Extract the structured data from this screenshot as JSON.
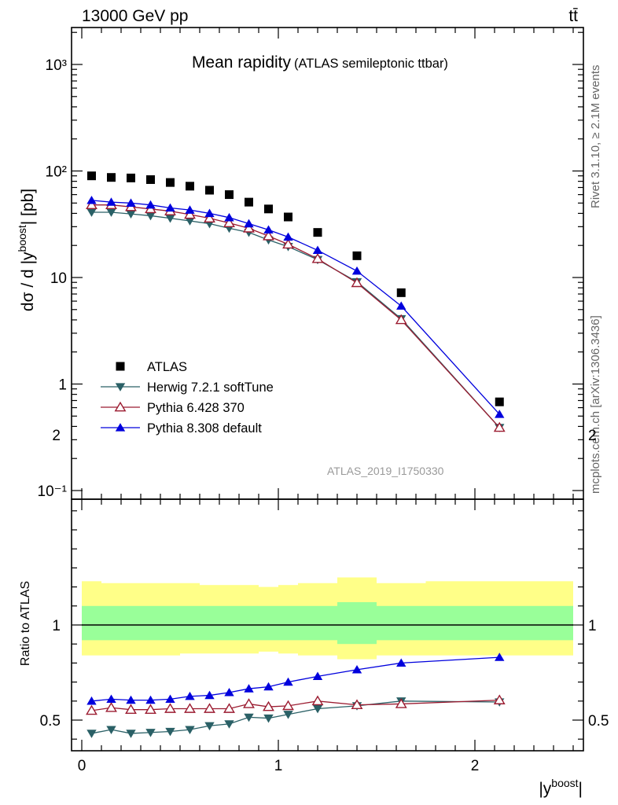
{
  "header": {
    "energy_label": "13000 GeV pp",
    "process_label": "tt̄"
  },
  "side_text": {
    "rivet": "Rivet 3.1.10, ≥ 2.1M events",
    "mcplots": "mcplots.cern.ch [arXiv:1306.3436]"
  },
  "chart_data": [
    {
      "type": "line",
      "title": "Mean rapidity",
      "subtitle": "(ATLAS semileptonic ttbar)",
      "ylabel": "dσ / d |y^boost| [pb]",
      "xlabel": "|y^boost|",
      "yscale": "log",
      "ylim": [
        0.08,
        2000
      ],
      "xlim": [
        -0.1,
        2.55
      ],
      "ytick_labels": [
        "10⁻¹",
        "1",
        "10",
        "10²",
        "10³"
      ],
      "watermark": "ATLAS_2019_I1750330",
      "legend_placement": "lower-left",
      "x": [
        0.05,
        0.15,
        0.25,
        0.35,
        0.45,
        0.55,
        0.65,
        0.75,
        0.85,
        0.95,
        1.05,
        1.2,
        1.4,
        1.625,
        2.125
      ],
      "series": [
        {
          "name": "ATLAS",
          "color": "#000000",
          "marker": "filled-square",
          "values": [
            90,
            87,
            86,
            83,
            78,
            72,
            66,
            60,
            51,
            44,
            37,
            26.5,
            16,
            7.2,
            0.68
          ]
        },
        {
          "name": "Herwig 7.2.1 softTune",
          "color": "#2a6066",
          "marker": "filled-triangle-down",
          "values": [
            41,
            41,
            39.5,
            38,
            36,
            34,
            32,
            29,
            26.5,
            22.5,
            19.5,
            14.7,
            9.1,
            4.1,
            0.39
          ]
        },
        {
          "name": "Pythia 6.428 370",
          "color": "#9b1b30",
          "marker": "open-triangle-up",
          "values": [
            48,
            48,
            46,
            44,
            42,
            39,
            36,
            32.5,
            29,
            24.5,
            20.5,
            15,
            8.9,
            4.0,
            0.39
          ]
        },
        {
          "name": "Pythia 8.308 default",
          "color": "#0000dd",
          "marker": "filled-triangle-up",
          "values": [
            53,
            51,
            50,
            48,
            45,
            43,
            40,
            36.5,
            32,
            28,
            24,
            18,
            11.5,
            5.4,
            0.52
          ]
        }
      ]
    },
    {
      "type": "line",
      "ylabel": "Ratio to ATLAS",
      "ylim": [
        0.38,
        2.3
      ],
      "x": [
        0.05,
        0.15,
        0.25,
        0.35,
        0.45,
        0.55,
        0.65,
        0.75,
        0.85,
        0.95,
        1.05,
        1.2,
        1.4,
        1.625,
        2.125
      ],
      "x_edges": [
        0,
        0.1,
        0.2,
        0.3,
        0.4,
        0.5,
        0.6,
        0.7,
        0.8,
        0.9,
        1.0,
        1.1,
        1.3,
        1.5,
        1.75,
        2.5
      ],
      "xtick_labels": [
        "0",
        "1",
        "2"
      ],
      "ytick_labels": [
        "0.5",
        "1",
        "2"
      ],
      "bands": {
        "inner_color": "#99ff99",
        "outer_color": "#ffff88",
        "inner_up": [
          1.1,
          1.1,
          1.1,
          1.1,
          1.1,
          1.1,
          1.1,
          1.1,
          1.1,
          1.1,
          1.1,
          1.1,
          1.12,
          1.1,
          1.1
        ],
        "inner_down": [
          0.92,
          0.92,
          0.92,
          0.92,
          0.92,
          0.92,
          0.92,
          0.92,
          0.92,
          0.92,
          0.92,
          0.92,
          0.9,
          0.92,
          0.92
        ],
        "outer_up": [
          1.23,
          1.22,
          1.22,
          1.22,
          1.22,
          1.22,
          1.21,
          1.21,
          1.21,
          1.2,
          1.21,
          1.22,
          1.25,
          1.22,
          1.23
        ],
        "outer_down": [
          0.84,
          0.84,
          0.84,
          0.84,
          0.84,
          0.85,
          0.85,
          0.85,
          0.85,
          0.86,
          0.85,
          0.84,
          0.82,
          0.84,
          0.84
        ]
      },
      "series": [
        {
          "name": "Herwig 7.2.1 softTune",
          "color": "#2a6066",
          "values": [
            0.43,
            0.45,
            0.43,
            0.435,
            0.44,
            0.45,
            0.47,
            0.48,
            0.515,
            0.51,
            0.53,
            0.56,
            0.575,
            0.6,
            0.595
          ]
        },
        {
          "name": "Pythia 6.428 370",
          "color": "#9b1b30",
          "values": [
            0.55,
            0.565,
            0.555,
            0.555,
            0.56,
            0.56,
            0.56,
            0.56,
            0.585,
            0.57,
            0.575,
            0.6,
            0.58,
            0.585,
            0.605
          ]
        },
        {
          "name": "Pythia 8.308 default",
          "color": "#0000dd",
          "values": [
            0.6,
            0.61,
            0.605,
            0.605,
            0.61,
            0.625,
            0.63,
            0.645,
            0.665,
            0.675,
            0.7,
            0.73,
            0.765,
            0.8,
            0.83
          ]
        }
      ]
    }
  ]
}
